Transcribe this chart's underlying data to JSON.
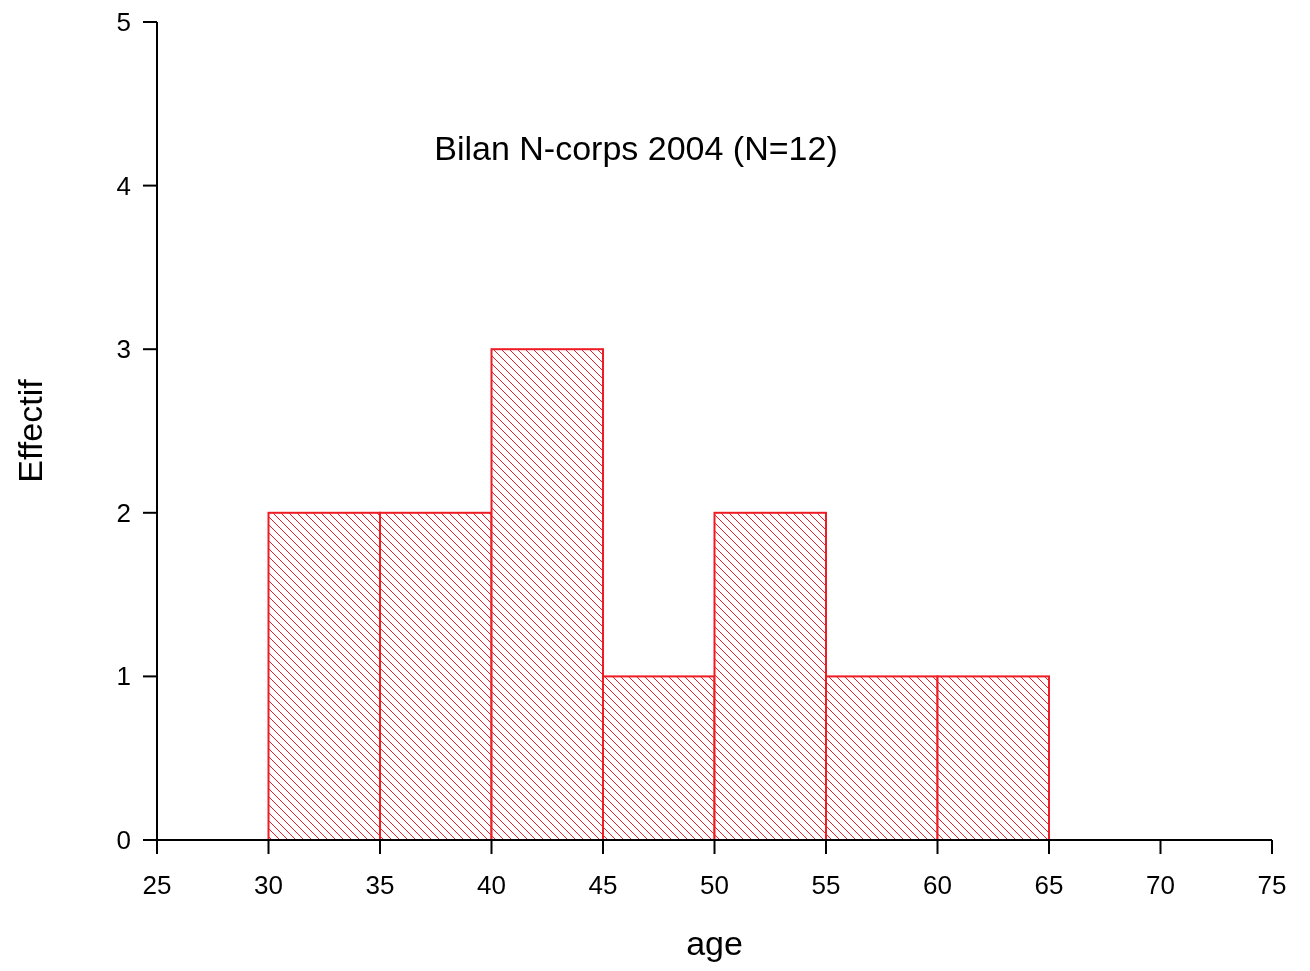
{
  "chart_data": {
    "type": "histogram",
    "title": "Bilan N-corps 2004 (N=12)",
    "xlabel": "age",
    "ylabel": "Effectif",
    "bins": [
      30,
      35,
      40,
      45,
      50,
      55,
      60,
      65
    ],
    "values": [
      2,
      2,
      3,
      1,
      2,
      1,
      1
    ],
    "color": "#ee1c25",
    "xlim": [
      25,
      75
    ],
    "xticks": [
      25,
      30,
      35,
      40,
      45,
      50,
      55,
      60,
      65,
      70,
      75
    ],
    "ylim": [
      0,
      5
    ],
    "yticks": [
      0,
      1,
      2,
      3,
      4,
      5
    ],
    "grid": false
  }
}
